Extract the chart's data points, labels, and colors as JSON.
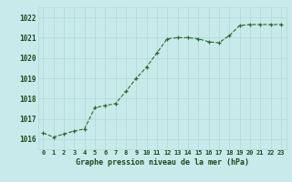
{
  "hours": [
    0,
    1,
    2,
    3,
    4,
    5,
    6,
    7,
    8,
    9,
    10,
    11,
    12,
    13,
    14,
    15,
    16,
    17,
    18,
    19,
    20,
    21,
    22,
    23
  ],
  "pressure": [
    1016.3,
    1016.1,
    1016.25,
    1016.4,
    1016.5,
    1017.55,
    1017.65,
    1017.75,
    1018.35,
    1019.0,
    1019.55,
    1020.25,
    1020.95,
    1021.0,
    1021.0,
    1020.95,
    1020.8,
    1020.75,
    1021.1,
    1021.6,
    1021.65,
    1021.65,
    1021.65,
    1021.65
  ],
  "ylim": [
    1015.5,
    1022.5
  ],
  "yticks": [
    1016,
    1017,
    1018,
    1019,
    1020,
    1021,
    1022
  ],
  "xlabel": "Graphe pression niveau de la mer (hPa)",
  "line_color": "#2d6a2d",
  "marker_color": "#2d6a2d",
  "bg_color": "#c8eaea",
  "grid_color": "#b0d8d8",
  "label_color": "#1a4a1a",
  "tick_color": "#1a4a1a"
}
